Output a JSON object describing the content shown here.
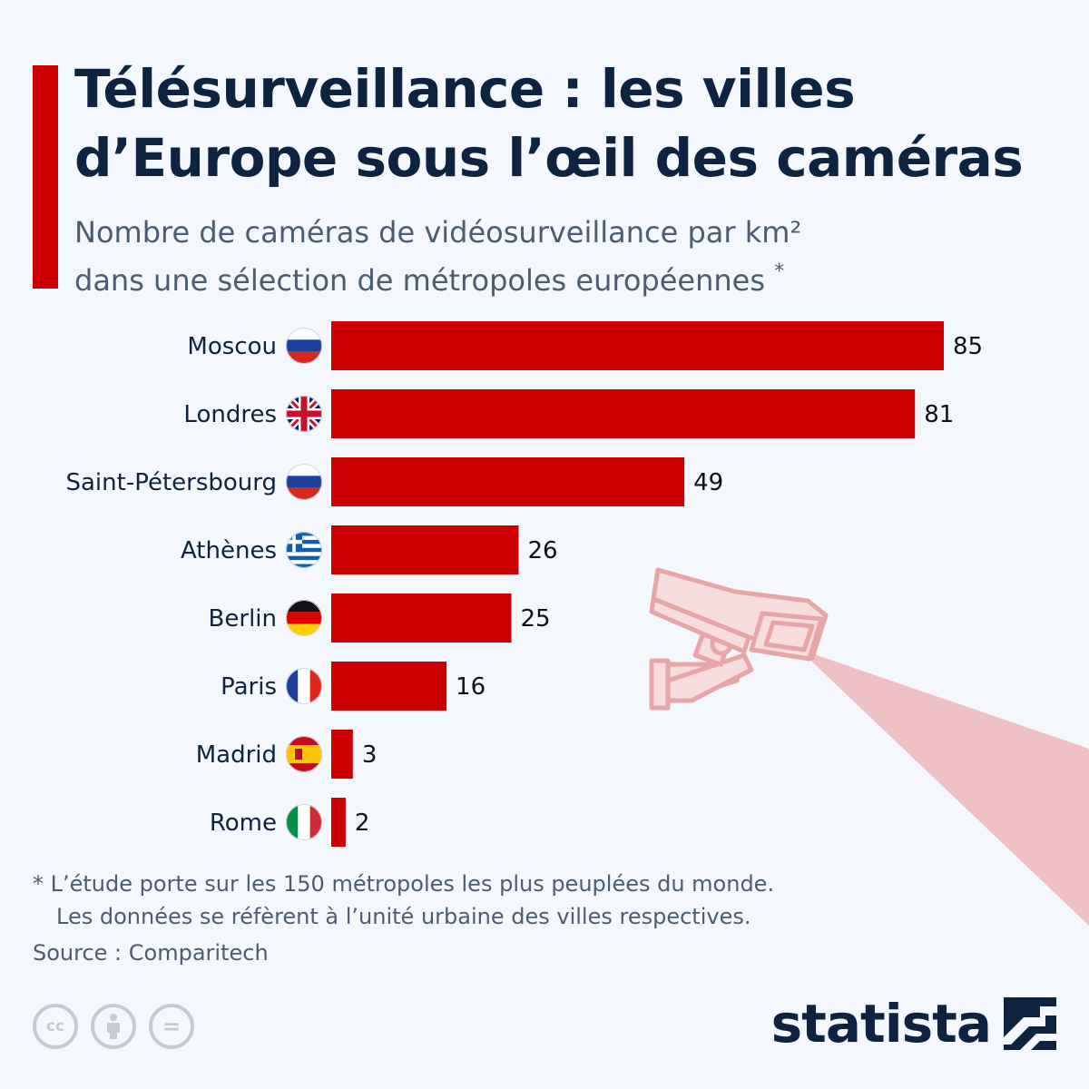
{
  "header": {
    "title_line1": "Télésurveillance : les villes",
    "title_line2": "d’Europe sous l’œil des caméras",
    "subtitle_line1": "Nombre de caméras de vidéosurveillance par km²",
    "subtitle_line2": "dans une sélection de métropoles européennes",
    "subtitle_marker": "*"
  },
  "colors": {
    "accent": "#cc0000",
    "bar": "#cc0000",
    "title": "#0e2340",
    "subtitle": "#4b5d72",
    "background": "#f4f7fb",
    "camera": "#e8a5a8",
    "camera_beam": "#efc0c3"
  },
  "chart_data": {
    "type": "bar",
    "orientation": "horizontal",
    "title": "Télésurveillance : les villes d’Europe sous l’œil des caméras",
    "subtitle": "Nombre de caméras de vidéosurveillance par km² dans une sélection de métropoles européennes *",
    "xlabel": "",
    "ylabel": "",
    "categories": [
      "Moscou",
      "Londres",
      "Saint-Pétersbourg",
      "Athènes",
      "Berlin",
      "Paris",
      "Madrid",
      "Rome"
    ],
    "values": [
      85,
      81,
      49,
      26,
      25,
      16,
      3,
      2
    ],
    "flags": [
      "russia-flag-icon",
      "uk-flag-icon",
      "russia-flag-icon",
      "greece-flag-icon",
      "germany-flag-icon",
      "france-flag-icon",
      "spain-flag-icon",
      "italy-flag-icon"
    ],
    "xlim": [
      0,
      85
    ],
    "grid": false,
    "data_labels": true
  },
  "footer": {
    "footnote_line1": "* L’étude porte sur les 150 métropoles les plus peuplées du monde.",
    "footnote_line2": "Les données se réfèrent à l’unité urbaine des villes respectives.",
    "source": "Source : Comparitech",
    "license_icons": [
      "cc-icon",
      "attribution-icon",
      "no-derivatives-icon"
    ],
    "license_glyphs": [
      "cc",
      "",
      "="
    ],
    "brand": "statista"
  }
}
